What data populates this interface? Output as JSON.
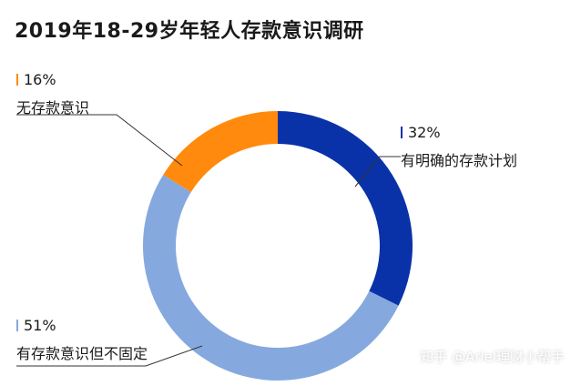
{
  "chart_data": {
    "type": "pie",
    "style": "donut",
    "title": "2019年18-29岁年轻人存款意识调研",
    "slices": [
      {
        "label": "有明确的存款计划",
        "value": 32,
        "value_label": "32%",
        "color": "#0a32a8"
      },
      {
        "label": "有存款意识但不固定",
        "value": 51,
        "value_label": "51%",
        "color": "#85a9df"
      },
      {
        "label": "无存款意识",
        "value": 16,
        "value_label": "16%",
        "color": "#ff8a0d"
      }
    ]
  },
  "watermark": "知乎 @Ariel理财小帮手"
}
